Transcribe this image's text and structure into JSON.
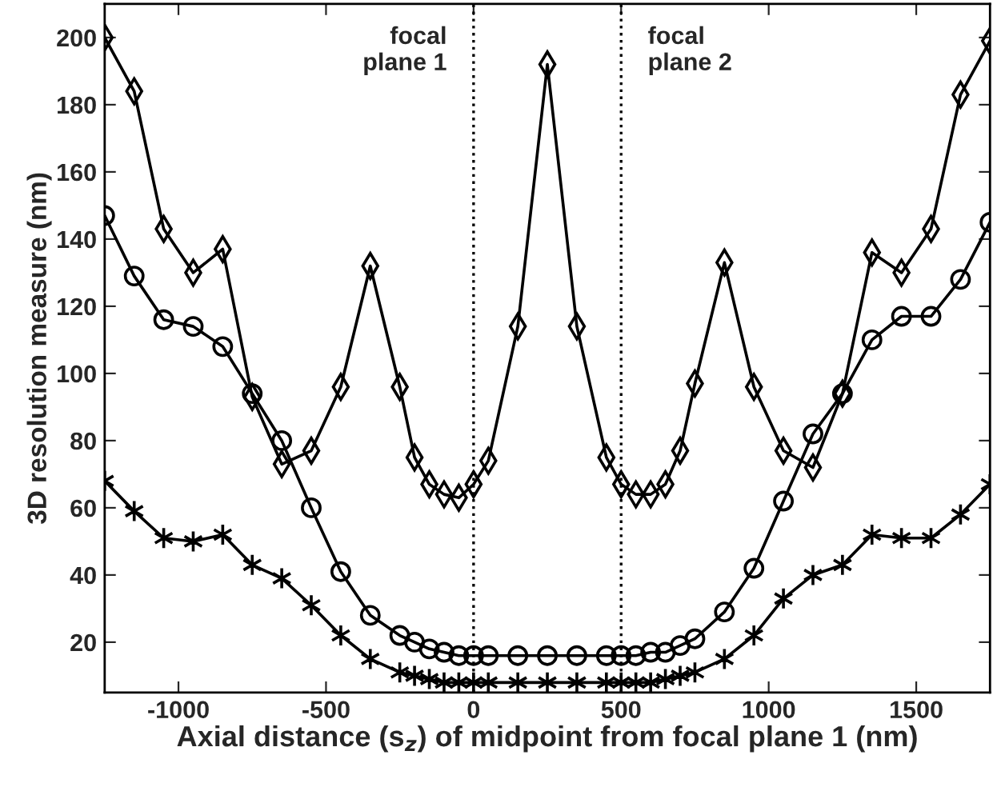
{
  "chart_data": {
    "type": "line",
    "xlabel": "Axial distance (s$_{z}$) of midpoint from focal plane 1 (nm)",
    "ylabel": "3D resolution measure (nm)",
    "x": [
      -1250,
      -1150,
      -1050,
      -950,
      -850,
      -750,
      -650,
      -550,
      -450,
      -350,
      -250,
      -200,
      -150,
      -100,
      -50,
      0,
      50,
      150,
      250,
      350,
      450,
      500,
      550,
      600,
      650,
      700,
      750,
      850,
      950,
      1050,
      1150,
      1250,
      1350,
      1450,
      1550,
      1650,
      1750
    ],
    "series": [
      {
        "color": "#000000",
        "marker": "diamond",
        "values": [
          200,
          184,
          143,
          130,
          137,
          93,
          73,
          77,
          96,
          132,
          96,
          75,
          67,
          64,
          63,
          67,
          74,
          114,
          192,
          114,
          75,
          67,
          64,
          64,
          67,
          77,
          97,
          133,
          96,
          77,
          72,
          94,
          136,
          130,
          143,
          183,
          199
        ]
      },
      {
        "color": "#000000",
        "marker": "circle",
        "values": [
          147,
          129,
          116,
          114,
          108,
          94,
          80,
          60,
          41,
          28,
          22,
          20,
          18,
          17,
          16,
          16,
          16,
          16,
          16,
          16,
          16,
          16,
          16,
          17,
          17,
          19,
          21,
          29,
          42,
          62,
          82,
          94,
          110,
          117,
          117,
          128,
          145
        ]
      },
      {
        "color": "#000000",
        "marker": "cross",
        "values": [
          68,
          59,
          51,
          50,
          52,
          43,
          39,
          31,
          22,
          15,
          11,
          10,
          9,
          8,
          8,
          8,
          8,
          8,
          8,
          8,
          8,
          8,
          8,
          8,
          9,
          10,
          11,
          15,
          22,
          33,
          40,
          43,
          52,
          51,
          51,
          58,
          67
        ]
      }
    ],
    "xlim": [
      -1250,
      1750
    ],
    "xticks": [
      -1000,
      -500,
      0,
      500,
      1000,
      1500
    ],
    "ylim": [
      5,
      210
    ],
    "yticks": [
      20,
      40,
      60,
      80,
      100,
      120,
      140,
      160,
      180,
      200
    ],
    "grid": false,
    "legend": false,
    "line_style": "solid",
    "ref_lines": [
      {
        "axis": "x",
        "value": 0,
        "label": "focal\nplane 1",
        "color": "#000000",
        "line_style": "dotted"
      },
      {
        "axis": "x",
        "value": 500,
        "label": "focal\nplane 2",
        "color": "#000000",
        "line_style": "dotted"
      }
    ]
  }
}
